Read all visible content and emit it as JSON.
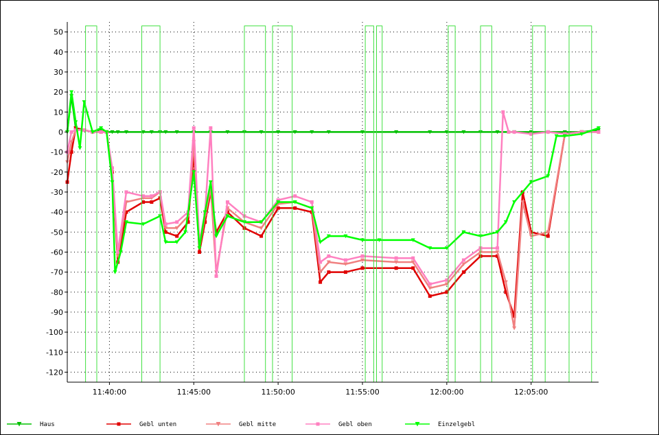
{
  "chart_data": {
    "type": "line",
    "title": "",
    "xlabel": "",
    "ylabel": "",
    "ylim": [
      -125,
      55
    ],
    "yticks": [
      50,
      40,
      30,
      20,
      10,
      0,
      -10,
      -20,
      -30,
      -40,
      -50,
      -60,
      -70,
      -80,
      -90,
      -100,
      -110,
      -120
    ],
    "xlim": [
      "11:37:30",
      "12:09:00"
    ],
    "xticks": [
      "11:40:00",
      "11:45:00",
      "11:50:00",
      "11:55:00",
      "12:00:00",
      "12:05:00"
    ],
    "grid": true,
    "legend_position": "bottom",
    "series": [
      {
        "name": "Haus",
        "color": "#00c000",
        "x": [
          "11:37:30",
          "11:37:45",
          "11:38:00",
          "11:38:30",
          "11:39:00",
          "11:39:30",
          "11:39:50",
          "11:40:10",
          "11:40:30",
          "11:41:00",
          "11:42:00",
          "11:42:30",
          "11:43:00",
          "11:43:20",
          "11:44:00",
          "11:45:00",
          "11:46:00",
          "11:47:00",
          "11:48:00",
          "11:49:00",
          "11:50:00",
          "11:51:00",
          "11:52:00",
          "11:53:00",
          "11:55:00",
          "11:57:00",
          "11:59:00",
          "12:00:00",
          "12:01:00",
          "12:02:00",
          "12:03:00",
          "12:04:00",
          "12:05:00",
          "12:06:00",
          "12:07:00",
          "12:08:00",
          "12:09:00"
        ],
        "y": [
          0,
          18,
          2,
          1,
          0,
          1,
          0,
          0,
          0,
          0,
          0,
          0,
          0,
          0,
          0,
          0,
          0,
          0,
          0,
          0,
          0,
          0,
          0,
          0,
          0,
          0,
          0,
          0,
          0,
          0,
          0,
          0,
          0,
          0,
          0,
          0,
          1
        ]
      },
      {
        "name": "Gebl unten",
        "color": "#e00000",
        "x": [
          "11:37:30",
          "11:37:45",
          "11:38:00",
          "11:38:30",
          "11:39:00",
          "11:39:30",
          "11:39:50",
          "11:40:10",
          "11:40:30",
          "11:41:00",
          "11:42:00",
          "11:42:30",
          "11:43:00",
          "11:43:20",
          "11:44:00",
          "11:44:40",
          "11:45:00",
          "11:45:20",
          "11:45:40",
          "11:46:00",
          "11:46:20",
          "11:47:00",
          "11:48:00",
          "11:49:00",
          "11:50:00",
          "11:51:00",
          "11:52:00",
          "11:52:30",
          "11:53:00",
          "11:54:00",
          "11:55:00",
          "11:57:00",
          "11:58:00",
          "11:59:00",
          "12:00:00",
          "12:01:00",
          "12:02:00",
          "12:03:00",
          "12:03:30",
          "12:04:00",
          "12:04:30",
          "12:05:00",
          "12:06:00",
          "12:07:00",
          "12:08:00",
          "12:09:00"
        ],
        "y": [
          -25,
          -10,
          2,
          1,
          0,
          0,
          0,
          -20,
          -65,
          -40,
          -35,
          -35,
          -33,
          -50,
          -52,
          -45,
          -10,
          -60,
          -45,
          -30,
          -50,
          -40,
          -48,
          -52,
          -38,
          -38,
          -40,
          -75,
          -70,
          -70,
          -68,
          -68,
          -68,
          -82,
          -80,
          -70,
          -62,
          -62,
          -80,
          -92,
          -30,
          -50,
          -52,
          -1,
          0,
          0
        ]
      },
      {
        "name": "Gebl mitte",
        "color": "#f08080",
        "x": [
          "11:37:30",
          "11:37:45",
          "11:38:00",
          "11:38:30",
          "11:39:00",
          "11:39:30",
          "11:39:50",
          "11:40:10",
          "11:40:30",
          "11:41:00",
          "11:42:00",
          "11:42:30",
          "11:43:00",
          "11:43:20",
          "11:44:00",
          "11:44:40",
          "11:45:00",
          "11:45:20",
          "11:45:40",
          "11:46:00",
          "11:46:20",
          "11:47:00",
          "11:48:00",
          "11:49:00",
          "11:50:00",
          "11:51:00",
          "11:52:00",
          "11:52:30",
          "11:53:00",
          "11:54:00",
          "11:55:00",
          "11:57:00",
          "11:58:00",
          "11:59:00",
          "12:00:00",
          "12:01:00",
          "12:02:00",
          "12:03:00",
          "12:03:30",
          "12:04:00",
          "12:04:30",
          "12:05:00",
          "12:06:00",
          "12:07:00",
          "12:08:00",
          "12:09:00"
        ],
        "y": [
          -15,
          -5,
          1,
          1,
          0,
          0,
          0,
          -20,
          -62,
          -35,
          -33,
          -33,
          -30,
          -48,
          -48,
          -42,
          -5,
          -58,
          -42,
          -28,
          -70,
          -38,
          -45,
          -48,
          -36,
          -35,
          -38,
          -70,
          -65,
          -66,
          -64,
          -65,
          -65,
          -78,
          -76,
          -66,
          -60,
          -60,
          -75,
          -98,
          -35,
          -52,
          -50,
          -1,
          0,
          0
        ]
      },
      {
        "name": "Gebl oben",
        "color": "#ff80c0",
        "x": [
          "11:37:30",
          "11:37:45",
          "11:38:00",
          "11:38:30",
          "11:39:00",
          "11:39:30",
          "11:39:50",
          "11:40:10",
          "11:40:30",
          "11:41:00",
          "11:42:00",
          "11:42:30",
          "11:43:00",
          "11:43:20",
          "11:44:00",
          "11:44:40",
          "11:45:00",
          "11:45:20",
          "11:45:40",
          "11:46:00",
          "11:46:20",
          "11:47:00",
          "11:48:00",
          "11:49:00",
          "11:50:00",
          "11:51:00",
          "11:52:00",
          "11:52:30",
          "11:53:00",
          "11:54:00",
          "11:55:00",
          "11:57:00",
          "11:58:00",
          "11:59:00",
          "12:00:00",
          "12:01:00",
          "12:02:00",
          "12:03:00",
          "12:03:20",
          "12:03:40",
          "12:04:00",
          "12:05:00",
          "12:06:00",
          "12:07:00",
          "12:08:00",
          "12:09:00"
        ],
        "y": [
          -10,
          0,
          1,
          1,
          0,
          0,
          0,
          -18,
          -60,
          -30,
          -32,
          -32,
          -30,
          -46,
          -45,
          -40,
          2,
          -55,
          -40,
          2,
          -72,
          -35,
          -42,
          -45,
          -34,
          -32,
          -35,
          -65,
          -62,
          -64,
          -62,
          -63,
          -63,
          -76,
          -74,
          -64,
          -58,
          -58,
          10,
          0,
          0,
          -1,
          0,
          -1,
          0,
          0
        ]
      },
      {
        "name": "Einzelgebl",
        "color": "#00ff00",
        "x": [
          "11:37:30",
          "11:37:45",
          "11:38:00",
          "11:38:15",
          "11:38:30",
          "11:39:00",
          "11:39:30",
          "11:39:50",
          "11:40:10",
          "11:40:20",
          "11:40:40",
          "11:41:00",
          "11:42:00",
          "11:43:00",
          "11:43:20",
          "11:44:00",
          "11:44:30",
          "11:45:00",
          "11:45:20",
          "11:45:40",
          "11:46:00",
          "11:46:20",
          "11:47:00",
          "11:48:00",
          "11:49:00",
          "11:50:00",
          "11:51:00",
          "11:52:00",
          "11:52:30",
          "11:53:00",
          "11:54:00",
          "11:55:00",
          "11:56:00",
          "11:58:00",
          "11:59:00",
          "12:00:00",
          "12:01:00",
          "12:02:00",
          "12:03:00",
          "12:03:30",
          "12:04:00",
          "12:05:00",
          "12:06:00",
          "12:06:30",
          "12:07:00",
          "12:08:00",
          "12:09:00"
        ],
        "y": [
          0,
          20,
          5,
          -8,
          15,
          0,
          2,
          0,
          -25,
          -70,
          -60,
          -45,
          -46,
          -42,
          -55,
          -55,
          -50,
          -20,
          -58,
          -40,
          -25,
          -52,
          -42,
          -45,
          -45,
          -35,
          -35,
          -38,
          -55,
          -52,
          -52,
          -54,
          -54,
          -54,
          -58,
          -58,
          -50,
          -52,
          -50,
          -45,
          -35,
          -25,
          -22,
          -2,
          -2,
          -1,
          2
        ]
      },
      {
        "name": "",
        "color": "#40e040",
        "step": true,
        "x": [
          "11:37:30",
          "11:38:35",
          "11:38:35",
          "11:39:15",
          "11:39:15",
          "11:41:55",
          "11:41:55",
          "11:43:00",
          "11:43:00",
          "11:48:00",
          "11:48:00",
          "11:49:15",
          "11:49:15",
          "11:49:40",
          "11:49:40",
          "11:50:50",
          "11:50:50",
          "11:55:10",
          "11:55:10",
          "11:55:40",
          "11:55:40",
          "11:55:50",
          "11:55:50",
          "11:56:10",
          "11:56:10",
          "12:00:05",
          "12:00:05",
          "12:00:30",
          "12:00:30",
          "12:02:00",
          "12:02:00",
          "12:02:40",
          "12:02:40",
          "12:05:05",
          "12:05:05",
          "12:05:50",
          "12:05:50",
          "12:07:15",
          "12:07:15",
          "12:08:35",
          "12:08:35",
          "12:09:00"
        ],
        "y": [
          -125,
          -125,
          53,
          53,
          -125,
          -125,
          53,
          53,
          -125,
          -125,
          53,
          53,
          -125,
          -125,
          53,
          53,
          -125,
          -125,
          53,
          53,
          -125,
          -125,
          53,
          53,
          -125,
          -125,
          53,
          53,
          -125,
          -125,
          53,
          53,
          -125,
          -125,
          53,
          53,
          -125,
          -125,
          53,
          53,
          -125,
          -125
        ]
      }
    ]
  }
}
